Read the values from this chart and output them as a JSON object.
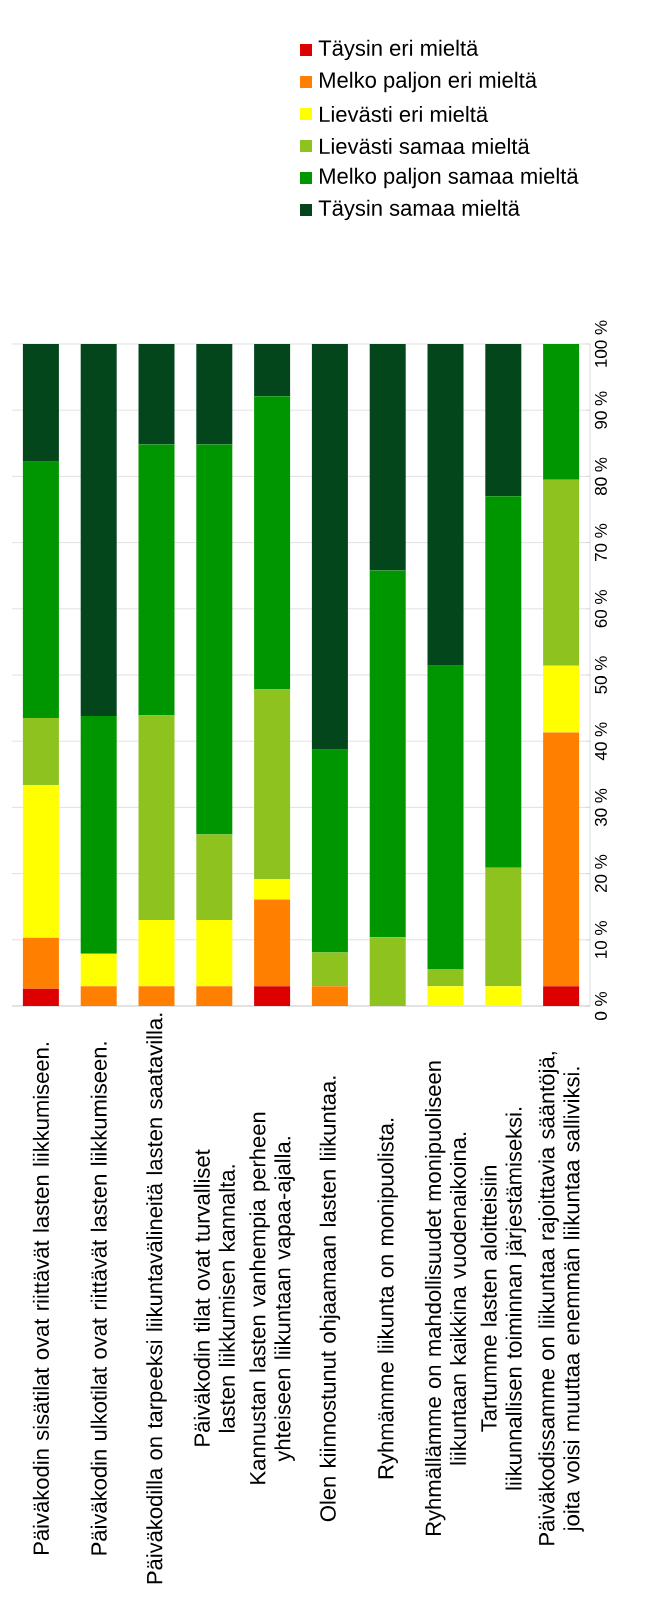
{
  "chart_data": {
    "type": "bar",
    "stacked": true,
    "categories": [
      "Päiväkodin sisätilat ovat riittävät lasten liikkumiseen.",
      "Päiväkodin ulkotilat ovat riittävät lasten liikkumiseen.",
      "Päiväkodilla on tarpeeksi liikuntavälineitä lasten saatavilla.",
      "Päiväkodin tilat ovat turvalliset lasten liikkumisen kannalta.",
      "Kannustan lasten vanhempia perheen yhteiseen liikuntaan vapaa-ajalla.",
      "Olen kiinnostunut ohjaamaan lasten liikuntaa.",
      "Ryhmämme liikunta on monipuolista.",
      "Ryhmällämme on mahdollisuudet monipuoliseen liikuntaan kaikkina vuodenaikoina.",
      "Tartumme lasten aloitteisiin liikunnallisen toiminnan järjestämiseksi.",
      "Päiväkodissamme on liikuntaa rajoittavia sääntöjä, joita voisi muuttaa enemmän liikuntaa salliviksi."
    ],
    "series": [
      {
        "name": "Täysin eri mieltä",
        "color": "#dd0000",
        "values": [
          2.6,
          0,
          0,
          0,
          3.0,
          0,
          0,
          0,
          0,
          3.0
        ]
      },
      {
        "name": "Melko paljon eri mieltä",
        "color": "#ff8000",
        "values": [
          7.7,
          3.0,
          3.0,
          3.0,
          13.1,
          3.0,
          0,
          0,
          0,
          38.3
        ]
      },
      {
        "name": "Lievästi eri mieltä",
        "color": "#ffff00",
        "values": [
          23.1,
          4.9,
          10.0,
          10.0,
          3.1,
          0,
          0,
          3.0,
          3.0,
          10.1
        ]
      },
      {
        "name": "Lievästi samaa mieltä",
        "color": "#8dc21f",
        "values": [
          10.1,
          0,
          30.9,
          12.9,
          28.6,
          5.1,
          10.4,
          2.6,
          17.9,
          28.1
        ]
      },
      {
        "name": "Melko paljon samaa mieltä",
        "color": "#009600",
        "values": [
          38.7,
          35.9,
          40.9,
          58.9,
          44.3,
          30.6,
          55.4,
          45.8,
          56.1,
          20.5
        ]
      },
      {
        "name": "Täysin samaa mieltä",
        "color": "#03461c",
        "values": [
          17.8,
          56.2,
          15.2,
          15.2,
          7.9,
          61.3,
          34.2,
          48.6,
          23.0,
          0
        ]
      }
    ],
    "ylim": [
      0,
      100
    ],
    "yticks": [
      {
        "value": 0,
        "label": "0 %"
      },
      {
        "value": 10,
        "label": "10 %"
      },
      {
        "value": 20,
        "label": "20 %"
      },
      {
        "value": 30,
        "label": "30 %"
      },
      {
        "value": 40,
        "label": "40 %"
      },
      {
        "value": 50,
        "label": "50 %"
      },
      {
        "value": 60,
        "label": "60 %"
      },
      {
        "value": 70,
        "label": "70 %"
      },
      {
        "value": 80,
        "label": "80 %"
      },
      {
        "value": 90,
        "label": "90 %"
      },
      {
        "value": 100,
        "label": "100 %"
      }
    ],
    "grid": "y",
    "legend": "top"
  }
}
